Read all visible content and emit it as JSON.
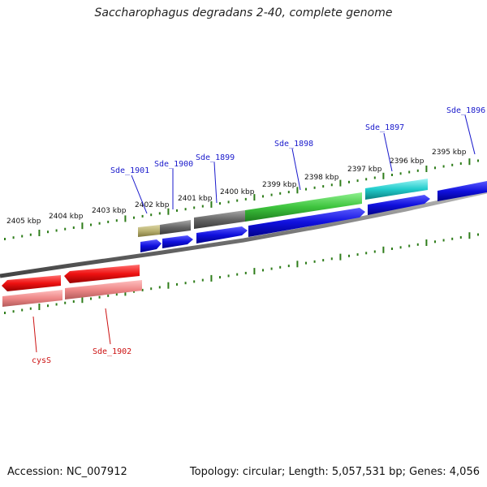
{
  "title": "Saccharophagus degradans 2-40, complete genome",
  "footer": {
    "accession": "Accession: NC_007912",
    "summary": "Topology: circular; Length: 5,057,531 bp; Genes: 4,056"
  },
  "kbp_labels": [
    "2405 kbp",
    "2404 kbp",
    "2403 kbp",
    "2402 kbp",
    "2401 kbp",
    "2400 kbp",
    "2399 kbp",
    "2398 kbp",
    "2397 kbp",
    "2396 kbp",
    "2395 kbp"
  ],
  "gene_labels_forward": [
    "Sde_1901",
    "Sde_1900",
    "Sde_1899",
    "Sde_1898",
    "Sde_1897",
    "Sde_1896"
  ],
  "gene_labels_reverse": [
    "cysS",
    "Sde_1902"
  ],
  "colors": {
    "forward_label": "#1a1acc",
    "reverse_label": "#cc1111",
    "backbone": "#888888",
    "tick": "#2e7d1a",
    "cds_blue": "#1010dd",
    "cds_red": "#ee1111",
    "cds_pink": "#ee8888",
    "gene_olive": "#b8b070",
    "gene_gray": "#6a6a6a",
    "gene_green": "#3ec43e",
    "gene_cyan": "#22cccc"
  }
}
